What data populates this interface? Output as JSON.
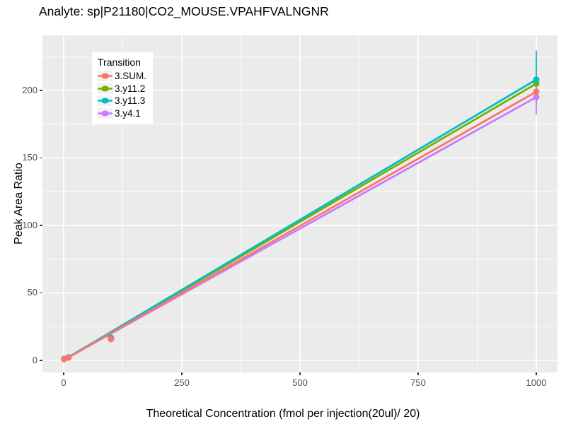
{
  "title": "Analyte: sp|P21180|CO2_MOUSE.VPAHFVALNGNR",
  "chart_data": {
    "type": "scatter",
    "title": "Analyte: sp|P21180|CO2_MOUSE.VPAHFVALNGNR",
    "xlabel": "Theoretical Concentration (fmol per injection(20ul)/ 20)",
    "ylabel": "Peak Area Ratio",
    "xlim": [
      -45,
      1045
    ],
    "ylim": [
      -9,
      241
    ],
    "x_ticks": [
      0,
      250,
      500,
      750,
      1000
    ],
    "y_ticks": [
      0,
      50,
      100,
      150,
      200
    ],
    "x_minor": [
      125,
      375,
      625,
      875
    ],
    "y_minor": [
      25,
      75,
      125,
      175,
      225
    ],
    "grid": true,
    "panel_bg": "#EBEBEB",
    "grid_color": "#FFFFFF",
    "axis_text_color": "#4D4D4D",
    "tick_color": "#333333",
    "legend_title": "Transition",
    "legend_position": "top-left-inside",
    "series": [
      {
        "name": "3.SUM.",
        "color": "#F8766D",
        "points": [
          [
            1,
            1.0
          ],
          [
            10,
            2.1
          ],
          [
            100,
            15.7
          ],
          [
            1000,
            199
          ]
        ],
        "line": {
          "x": [
            0,
            1000
          ],
          "y": [
            0.3,
            199
          ]
        },
        "errorbar": {
          "x": 1000,
          "ymin": 190,
          "ymax": 206
        }
      },
      {
        "name": "3.y11.2",
        "color": "#7CAE00",
        "points": [
          [
            1,
            1.1
          ],
          [
            10,
            2.2
          ],
          [
            100,
            16.8
          ],
          [
            1000,
            205
          ]
        ],
        "line": {
          "x": [
            0,
            1000
          ],
          "y": [
            0.3,
            205
          ]
        },
        "errorbar": {
          "x": 1000,
          "ymin": 200,
          "ymax": 207
        }
      },
      {
        "name": "3.y11.3",
        "color": "#00BFC4",
        "points": [
          [
            1,
            1.1
          ],
          [
            10,
            2.2
          ],
          [
            100,
            16.5
          ],
          [
            1000,
            208
          ]
        ],
        "line": {
          "x": [
            0,
            1000
          ],
          "y": [
            0.3,
            208
          ]
        },
        "errorbar": {
          "x": 1000,
          "ymin": 191,
          "ymax": 229.5
        }
      },
      {
        "name": "3.y4.1",
        "color": "#C77CFF",
        "points": [
          [
            1,
            1.0
          ],
          [
            10,
            2.0
          ],
          [
            100,
            15.9
          ],
          [
            1000,
            195
          ]
        ],
        "line": {
          "x": [
            0,
            1000
          ],
          "y": [
            0.3,
            195
          ]
        },
        "errorbar": {
          "x": 1000,
          "ymin": 182,
          "ymax": 205
        }
      }
    ],
    "point_draw_order": [
      3,
      1,
      2,
      0
    ]
  }
}
